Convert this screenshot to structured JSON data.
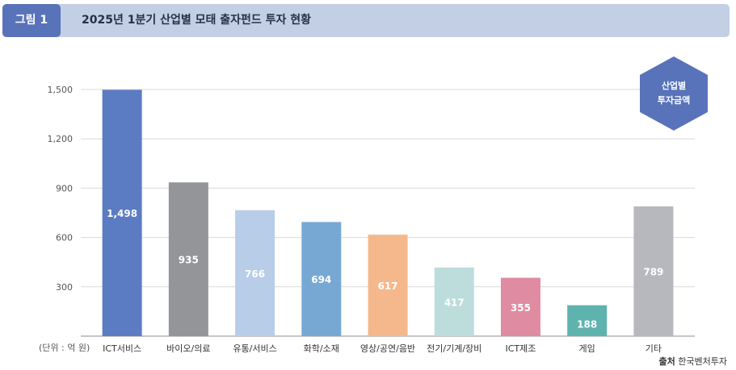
{
  "figure": {
    "tag": "그림 1",
    "title": "2025년 1분기 산업별 모태 출자펀드 투자 현황"
  },
  "badge": {
    "line1": "산업별",
    "line2": "투자금액"
  },
  "unit_label": "(단위 : 억 원)",
  "source": {
    "label": "출처",
    "text": "한국벤처투자"
  },
  "chart_data": {
    "type": "bar",
    "categories": [
      "ICT서비스",
      "바이오/의료",
      "유통/서비스",
      "화학/소재",
      "영상/공연/음반",
      "전기/기계/장비",
      "ICT제조",
      "게임",
      "기타"
    ],
    "values": [
      1498,
      935,
      766,
      694,
      617,
      417,
      355,
      188,
      789
    ],
    "value_labels": [
      "1,498",
      "935",
      "766",
      "694",
      "617",
      "417",
      "355",
      "188",
      "789"
    ],
    "colors": [
      "#5b7bc3",
      "#939598",
      "#b8cde8",
      "#77a8d4",
      "#f5b88c",
      "#bddcdc",
      "#df8ba1",
      "#5fb3ae",
      "#b6b8bd"
    ],
    "yticks": [
      300,
      600,
      900,
      1200,
      1500
    ],
    "ytick_labels": [
      "300",
      "600",
      "900",
      "1,200",
      "1,500"
    ],
    "ylim": [
      0,
      1500
    ],
    "grid": true
  }
}
